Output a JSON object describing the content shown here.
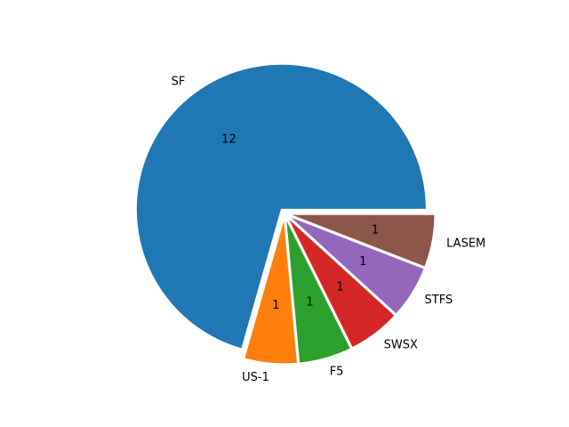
{
  "chart_data": {
    "type": "pie",
    "title": "",
    "categories": [
      "SF",
      "US-1",
      "F5",
      "SWSX",
      "STFS",
      "LASEM"
    ],
    "values": [
      12,
      1,
      1,
      1,
      1,
      1
    ],
    "value_labels": [
      "12",
      "1",
      "1",
      "1",
      "1",
      "1"
    ],
    "colors": [
      "#1f77b4",
      "#ff7f0e",
      "#2ca02c",
      "#d62728",
      "#9467bd",
      "#8c564b"
    ],
    "start_angle_deg": 0,
    "direction": "counterclockwise",
    "exploded": [
      true,
      true,
      true,
      true,
      true,
      true
    ],
    "legend": "none"
  }
}
